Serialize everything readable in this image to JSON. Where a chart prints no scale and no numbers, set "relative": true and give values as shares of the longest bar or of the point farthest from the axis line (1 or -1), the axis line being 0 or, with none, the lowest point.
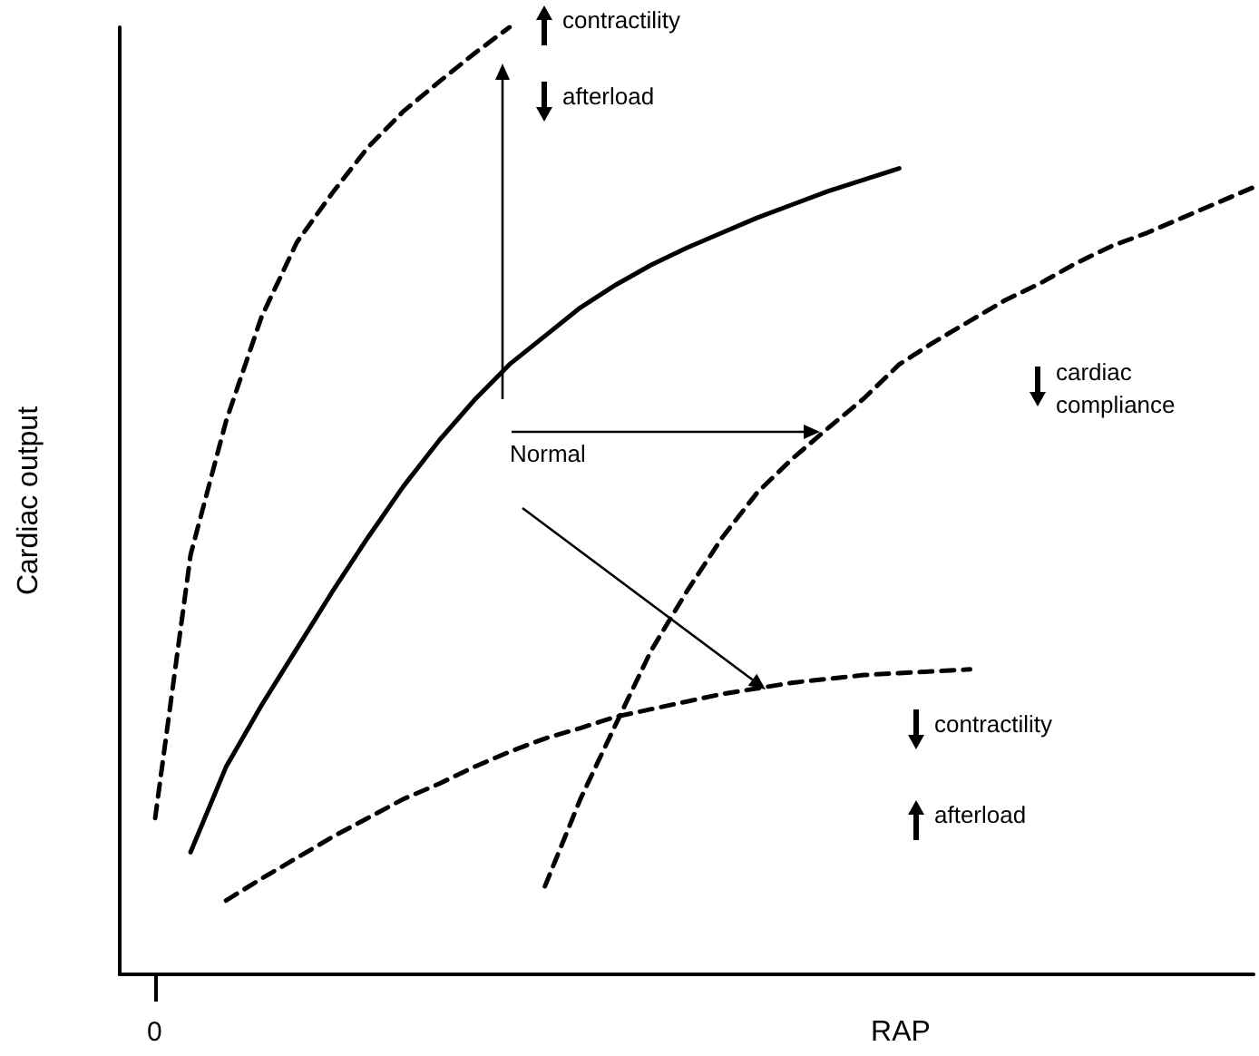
{
  "chart_data": {
    "type": "line",
    "relative": true,
    "xlabel": "RAP",
    "ylabel": "Cardiac output",
    "grid": false,
    "marker": "none",
    "categories": [
      null,
      null,
      null,
      null,
      null,
      null,
      null,
      null,
      null,
      null,
      null,
      null,
      null,
      null,
      null,
      null,
      null,
      null,
      null,
      null,
      null,
      null,
      null,
      null,
      null,
      null,
      null,
      null,
      null,
      null,
      null,
      null,
      null
    ],
    "series": [
      {
        "color": "#000000",
        "line_style": "dashed",
        "values": [
          null,
          0.165,
          0.443,
          0.584,
          0.694,
          0.773,
          0.825,
          0.873,
          0.911,
          0.942,
          0.972,
          1,
          null,
          null,
          null,
          null,
          null,
          null,
          null,
          null,
          null,
          null,
          null,
          null,
          null,
          null,
          null,
          null,
          null,
          null,
          null,
          null,
          null
        ]
      },
      {
        "color": "#000000",
        "line_style": "solid",
        "values": [
          null,
          null,
          0.129,
          0.219,
          0.284,
          0.344,
          0.404,
          0.461,
          0.515,
          0.563,
          0.606,
          0.644,
          0.674,
          0.704,
          0.728,
          0.749,
          0.767,
          0.783,
          0.799,
          0.813,
          0.827,
          0.839,
          0.851,
          null,
          null,
          null,
          null,
          null,
          null,
          null,
          null,
          null,
          null
        ]
      },
      {
        "color": "#000000",
        "line_style": "dashed",
        "values": [
          null,
          null,
          null,
          0.078,
          0.101,
          0.123,
          0.145,
          0.165,
          0.185,
          0.201,
          0.219,
          0.235,
          0.249,
          0.26,
          0.272,
          0.28,
          0.288,
          0.296,
          0.302,
          0.308,
          0.312,
          0.316,
          0.318,
          0.32,
          0.322,
          null,
          null,
          null,
          null,
          null,
          null,
          null,
          null
        ]
      },
      {
        "color": "#000000",
        "line_style": "dashed",
        "values": [
          null,
          null,
          null,
          null,
          null,
          null,
          null,
          null,
          null,
          null,
          null,
          null,
          0.093,
          0.185,
          0.264,
          0.342,
          0.404,
          0.461,
          0.509,
          0.545,
          0.577,
          0.608,
          0.644,
          0.668,
          0.69,
          0.712,
          0.73,
          0.751,
          0.769,
          0.783,
          0.799,
          0.815,
          0.831
        ]
      }
    ],
    "annotations": [
      "Normal",
      "contractility",
      "afterload",
      "cardiac compliance",
      "contractility",
      "afterload",
      "0"
    ]
  }
}
